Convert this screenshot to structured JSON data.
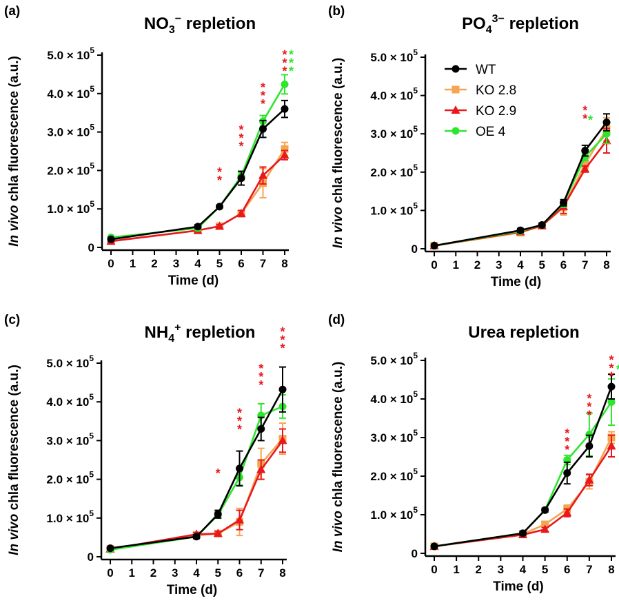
{
  "legend": [
    {
      "name": "WT",
      "color": "#000000",
      "marker": "circle"
    },
    {
      "name": "KO 2.8",
      "color": "#f5a550",
      "marker": "square"
    },
    {
      "name": "KO 2.9",
      "color": "#e8181c",
      "marker": "triangle"
    },
    {
      "name": "OE 4",
      "color": "#2ee62e",
      "marker": "circle"
    }
  ],
  "chart_data": [
    {
      "type": "line",
      "panel": "(a)",
      "title_main": "NO",
      "title_sub": "3",
      "title_sup": "−",
      "title_rest": " repletion",
      "xlabel": "Time (d)",
      "ylabel_italic": "In vivo",
      "ylabel_rest": " chla fluorescence (a.u.)",
      "x_ticks": [
        "0",
        "1",
        "2",
        "3",
        "4",
        "5",
        "6",
        "7",
        "8"
      ],
      "xlim": [
        0,
        8
      ],
      "y_ticks": [
        {
          "value": 0,
          "label": "0",
          "mant": "",
          "exp": ""
        },
        {
          "value": 100000,
          "label": "",
          "mant": "1.0 × 10",
          "exp": "5"
        },
        {
          "value": 200000,
          "label": "",
          "mant": "2.0 × 10",
          "exp": "5"
        },
        {
          "value": 300000,
          "label": "",
          "mant": "3.0 × 10",
          "exp": "5"
        },
        {
          "value": 400000,
          "label": "",
          "mant": "4.0 × 10",
          "exp": "5"
        },
        {
          "value": 500000,
          "label": "",
          "mant": "5.0 × 10",
          "exp": "5"
        }
      ],
      "ylim": [
        0,
        500000
      ],
      "x": [
        0,
        4,
        5,
        6,
        7,
        8
      ],
      "series": [
        {
          "name": "KO 2.8",
          "values": [
            16000,
            44000,
            55000,
            88000,
            167000,
            256000
          ],
          "errors": [
            3000,
            6000,
            4000,
            8000,
            38000,
            17000
          ]
        },
        {
          "name": "KO 2.9",
          "values": [
            16000,
            44000,
            55000,
            88000,
            187000,
            240000
          ],
          "errors": [
            3000,
            6000,
            4000,
            8000,
            22000,
            12000
          ]
        },
        {
          "name": "OE 4",
          "values": [
            26000,
            50000,
            106000,
            185000,
            328000,
            424000
          ],
          "errors": [
            3000,
            5000,
            4000,
            10000,
            15000,
            25000
          ]
        },
        {
          "name": "WT",
          "values": [
            21000,
            54000,
            106000,
            180000,
            308000,
            360000
          ],
          "errors": [
            3000,
            5000,
            4000,
            18000,
            22000,
            22000
          ]
        }
      ],
      "significance": [
        {
          "x": 5,
          "y": 185000,
          "text": "**",
          "color": "#e8181c"
        },
        {
          "x": 6,
          "y": 295000,
          "text": "***",
          "color": "#e8181c"
        },
        {
          "x": 7,
          "y": 405000,
          "text": "***",
          "color": "#e8181c"
        },
        {
          "x": 8,
          "y": 490000,
          "text": "***",
          "color": "#e8181c"
        },
        {
          "x": 8.3,
          "y": 490000,
          "text": "***",
          "color": "#2ee62e"
        }
      ]
    },
    {
      "type": "line",
      "panel": "(b)",
      "title_main": "PO",
      "title_sub": "4",
      "title_sup": "3−",
      "title_rest": " repletion",
      "xlabel": "Time (d)",
      "ylabel_italic": "In vivo",
      "ylabel_rest": " chla fluorescence (a.u.)",
      "x_ticks": [
        "0",
        "1",
        "2",
        "3",
        "4",
        "5",
        "6",
        "7",
        "8"
      ],
      "xlim": [
        0,
        8
      ],
      "y_ticks": [
        {
          "value": 0,
          "label": "0",
          "mant": "",
          "exp": ""
        },
        {
          "value": 100000,
          "label": "",
          "mant": "1.0 × 10",
          "exp": "5"
        },
        {
          "value": 200000,
          "label": "",
          "mant": "2.0 × 10",
          "exp": "5"
        },
        {
          "value": 300000,
          "label": "",
          "mant": "3.0 × 10",
          "exp": "5"
        },
        {
          "value": 400000,
          "label": "",
          "mant": "4.0 × 10",
          "exp": "5"
        },
        {
          "value": 500000,
          "label": "",
          "mant": "5.0 × 10",
          "exp": "5"
        }
      ],
      "ylim": [
        0,
        500000
      ],
      "x": [
        0,
        4,
        5,
        6,
        7,
        8
      ],
      "series": [
        {
          "name": "KO 2.8",
          "values": [
            8000,
            42000,
            60000,
            108000,
            222000,
            312000
          ],
          "errors": [
            2000,
            5000,
            4000,
            20000,
            12000,
            30000
          ]
        },
        {
          "name": "KO 2.9",
          "values": [
            8000,
            44000,
            60000,
            110000,
            208000,
            282000
          ],
          "errors": [
            2000,
            5000,
            4000,
            18000,
            8000,
            32000
          ]
        },
        {
          "name": "OE 4",
          "values": [
            8000,
            46000,
            62000,
            118000,
            240000,
            300000
          ],
          "errors": [
            2000,
            5000,
            4000,
            10000,
            10000,
            25000
          ]
        },
        {
          "name": "WT",
          "values": [
            8000,
            48000,
            62000,
            120000,
            256000,
            330000
          ],
          "errors": [
            2000,
            5000,
            4000,
            8000,
            14000,
            22000
          ]
        }
      ],
      "significance": [
        {
          "x": 7,
          "y": 350000,
          "text": "**",
          "color": "#e8181c"
        },
        {
          "x": 7.25,
          "y": 325000,
          "text": "*",
          "color": "#2ee62e"
        }
      ]
    },
    {
      "type": "line",
      "panel": "(c)",
      "title_main": "NH",
      "title_sub": "4",
      "title_sup": "+",
      "title_rest": " repletion",
      "xlabel": "Time (d)",
      "ylabel_italic": "In vivo",
      "ylabel_rest": " chla fluorescence (a.u.)",
      "x_ticks": [
        "0",
        "1",
        "2",
        "3",
        "4",
        "5",
        "6",
        "7",
        "8"
      ],
      "xlim": [
        0,
        8
      ],
      "y_ticks": [
        {
          "value": 0,
          "label": "0",
          "mant": "",
          "exp": ""
        },
        {
          "value": 100000,
          "label": "",
          "mant": "1.0 × 10",
          "exp": "5"
        },
        {
          "value": 200000,
          "label": "",
          "mant": "2.0 × 10",
          "exp": "5"
        },
        {
          "value": 300000,
          "label": "",
          "mant": "3.0 × 10",
          "exp": "5"
        },
        {
          "value": 400000,
          "label": "",
          "mant": "4.0 × 10",
          "exp": "5"
        },
        {
          "value": 500000,
          "label": "",
          "mant": "5.0 × 10",
          "exp": "5"
        }
      ],
      "ylim": [
        0,
        500000
      ],
      "x": [
        0,
        4,
        5,
        6,
        7,
        8
      ],
      "series": [
        {
          "name": "KO 2.8",
          "values": [
            20000,
            55000,
            60000,
            90000,
            240000,
            305000
          ],
          "errors": [
            3000,
            5000,
            5000,
            35000,
            40000,
            40000
          ]
        },
        {
          "name": "KO 2.9",
          "values": [
            20000,
            58000,
            60000,
            95000,
            225000,
            300000
          ],
          "errors": [
            3000,
            5000,
            5000,
            25000,
            25000,
            30000
          ]
        },
        {
          "name": "OE 4",
          "values": [
            18000,
            52000,
            108000,
            205000,
            365000,
            388000
          ],
          "errors": [
            3000,
            5000,
            8000,
            20000,
            30000,
            30000
          ]
        },
        {
          "name": "WT",
          "values": [
            22000,
            52000,
            110000,
            228000,
            330000,
            432000
          ],
          "errors": [
            3000,
            5000,
            10000,
            45000,
            30000,
            58000
          ]
        }
      ],
      "significance": [
        {
          "x": 5,
          "y": 205000,
          "text": "*",
          "color": "#e8181c"
        },
        {
          "x": 6,
          "y": 360000,
          "text": "***",
          "color": "#e8181c"
        },
        {
          "x": 7,
          "y": 475000,
          "text": "***",
          "color": "#e8181c"
        },
        {
          "x": 8,
          "y": 570000,
          "text": "***",
          "color": "#e8181c"
        }
      ]
    },
    {
      "type": "line",
      "panel": "(d)",
      "title_main": "Urea repletion",
      "title_sub": "",
      "title_sup": "",
      "title_rest": "",
      "xlabel": "Time (d)",
      "ylabel_italic": "In vivo",
      "ylabel_rest": " chla fluorescence (a.u.)",
      "x_ticks": [
        "0",
        "1",
        "2",
        "3",
        "4",
        "5",
        "6",
        "7",
        "8"
      ],
      "xlim": [
        0,
        8
      ],
      "y_ticks": [
        {
          "value": 0,
          "label": "0",
          "mant": "",
          "exp": ""
        },
        {
          "value": 100000,
          "label": "",
          "mant": "1.0 × 10",
          "exp": "5"
        },
        {
          "value": 200000,
          "label": "",
          "mant": "2.0 × 10",
          "exp": "5"
        },
        {
          "value": 300000,
          "label": "",
          "mant": "3.0 × 10",
          "exp": "5"
        },
        {
          "value": 400000,
          "label": "",
          "mant": "4.0 × 10",
          "exp": "5"
        },
        {
          "value": 500000,
          "label": "",
          "mant": "5.0 × 10",
          "exp": "5"
        }
      ],
      "ylim": [
        0,
        500000
      ],
      "x": [
        0,
        4,
        5,
        6,
        7,
        8
      ],
      "series": [
        {
          "name": "KO 2.8",
          "values": [
            18000,
            50000,
            75000,
            115000,
            185000,
            300000
          ],
          "errors": [
            3000,
            5000,
            5000,
            10000,
            18000,
            15000
          ]
        },
        {
          "name": "KO 2.9",
          "values": [
            18000,
            48000,
            62000,
            105000,
            190000,
            278000
          ],
          "errors": [
            3000,
            5000,
            5000,
            10000,
            15000,
            28000
          ]
        },
        {
          "name": "OE 4",
          "values": [
            18000,
            52000,
            112000,
            242000,
            308000,
            392000
          ],
          "errors": [
            3000,
            5000,
            5000,
            12000,
            55000,
            60000
          ]
        },
        {
          "name": "WT",
          "values": [
            18000,
            52000,
            112000,
            208000,
            278000,
            432000
          ],
          "errors": [
            3000,
            5000,
            5000,
            28000,
            28000,
            32000
          ]
        }
      ],
      "significance": [
        {
          "x": 6,
          "y": 300000,
          "text": "***",
          "color": "#e8181c"
        },
        {
          "x": 7,
          "y": 390000,
          "text": "***",
          "color": "#e8181c"
        },
        {
          "x": 8,
          "y": 490000,
          "text": "***",
          "color": "#e8181c"
        },
        {
          "x": 8.32,
          "y": 465000,
          "text": "*",
          "color": "#2ee62e"
        }
      ]
    }
  ]
}
